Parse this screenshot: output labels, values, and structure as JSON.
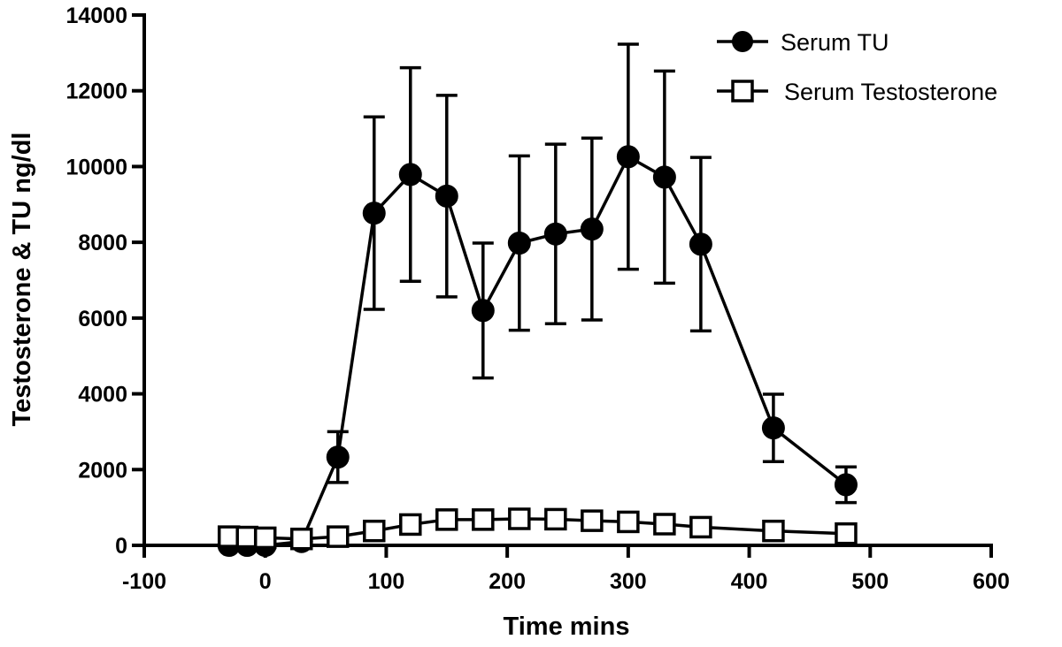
{
  "chart_data": {
    "type": "line",
    "title": "",
    "xlabel": "Time mins",
    "ylabel": "Testosterone & TU ng/dl",
    "xlim": [
      -100,
      600
    ],
    "ylim": [
      0,
      14000
    ],
    "x_ticks": [
      -100,
      0,
      100,
      200,
      300,
      400,
      500,
      600
    ],
    "y_ticks": [
      0,
      2000,
      4000,
      6000,
      8000,
      10000,
      12000,
      14000
    ],
    "x_tick_labels": [
      "-100",
      "0",
      "100",
      "200",
      "300",
      "400",
      "500",
      "600"
    ],
    "y_tick_labels": [
      "0",
      "2000",
      "4000",
      "6000",
      "8000",
      "10000",
      "12000",
      "14000"
    ],
    "grid": false,
    "legend_position": "top-right",
    "series": [
      {
        "name": "Serum TU",
        "marker": "filled-circle",
        "color": "#000000",
        "x": [
          -30,
          -15,
          0,
          30,
          60,
          90,
          120,
          150,
          180,
          210,
          240,
          270,
          300,
          330,
          360,
          420,
          480
        ],
        "y": [
          0,
          0,
          0,
          100,
          2330,
          8770,
          9790,
          9220,
          6200,
          7980,
          8220,
          8350,
          10260,
          9720,
          7950,
          3100,
          1600
        ],
        "error": [
          0,
          0,
          0,
          0,
          670,
          2540,
          2820,
          2660,
          1780,
          2300,
          2370,
          2400,
          2970,
          2800,
          2290,
          890,
          470
        ]
      },
      {
        "name": "Serum Testosterone",
        "marker": "open-square",
        "color": "#000000",
        "x": [
          -30,
          -15,
          0,
          30,
          60,
          90,
          120,
          150,
          180,
          210,
          240,
          270,
          300,
          330,
          360,
          420,
          480
        ],
        "y": [
          230,
          220,
          200,
          170,
          230,
          380,
          550,
          680,
          680,
          700,
          690,
          650,
          620,
          560,
          480,
          380,
          310
        ],
        "error": []
      }
    ]
  }
}
